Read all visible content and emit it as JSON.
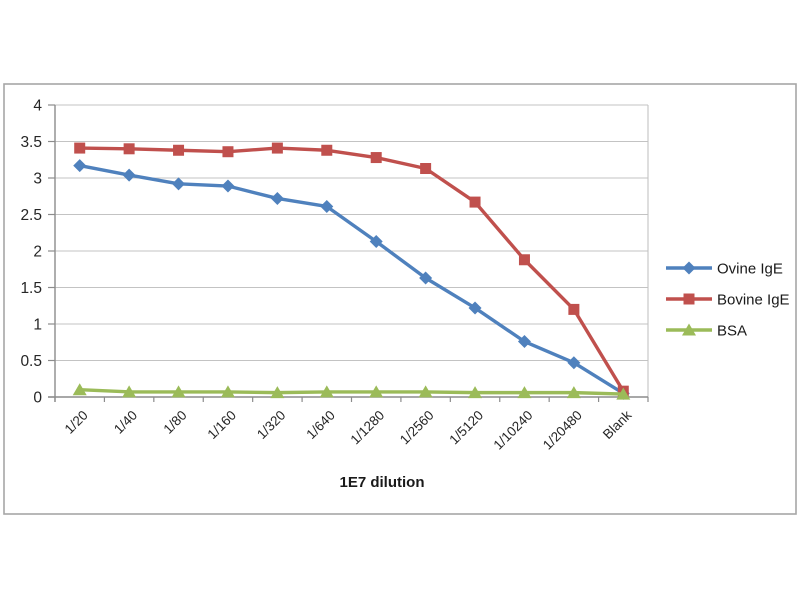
{
  "page": {
    "background": "#ffffff",
    "frame_border_color": "#a6a6a6"
  },
  "chart": {
    "axis_color": "#8c8c8c",
    "grid_color": "#c3c3c3",
    "tick_color": "#8c8c8c",
    "tick_label_color": "#262626",
    "axis_title_color": "#1a1a1a"
  },
  "chart_data": {
    "type": "line",
    "title": "",
    "xlabel": "1E7 dilution",
    "ylabel": "",
    "categories": [
      "1/20",
      "1/40",
      "1/80",
      "1/160",
      "1/320",
      "1/640",
      "1/1280",
      "1/2560",
      "1/5120",
      "1/10240",
      "1/20480",
      "Blank"
    ],
    "series": [
      {
        "name": "Ovine IgE",
        "color": "#4F81BD",
        "marker": "diamond",
        "values": [
          3.17,
          3.04,
          2.92,
          2.89,
          2.72,
          2.61,
          2.13,
          1.63,
          1.22,
          0.76,
          0.47,
          0.05
        ]
      },
      {
        "name": "Bovine IgE",
        "color": "#C0504D",
        "marker": "square",
        "values": [
          3.41,
          3.4,
          3.38,
          3.36,
          3.41,
          3.38,
          3.28,
          3.13,
          2.67,
          1.88,
          1.2,
          0.08
        ]
      },
      {
        "name": "BSA",
        "color": "#9BBB59",
        "marker": "triangle",
        "values": [
          0.1,
          0.07,
          0.07,
          0.07,
          0.06,
          0.07,
          0.07,
          0.07,
          0.06,
          0.06,
          0.06,
          0.04
        ]
      }
    ],
    "ylim": [
      0,
      4
    ],
    "ytick_step": 0.5,
    "ytick_labels": [
      "0",
      "0.5",
      "1",
      "1.5",
      "2",
      "2.5",
      "3",
      "3.5",
      "4"
    ],
    "grid": true,
    "legend_position": "right",
    "legend_entries": [
      "Ovine IgE",
      "Bovine IgE",
      "BSA"
    ]
  }
}
